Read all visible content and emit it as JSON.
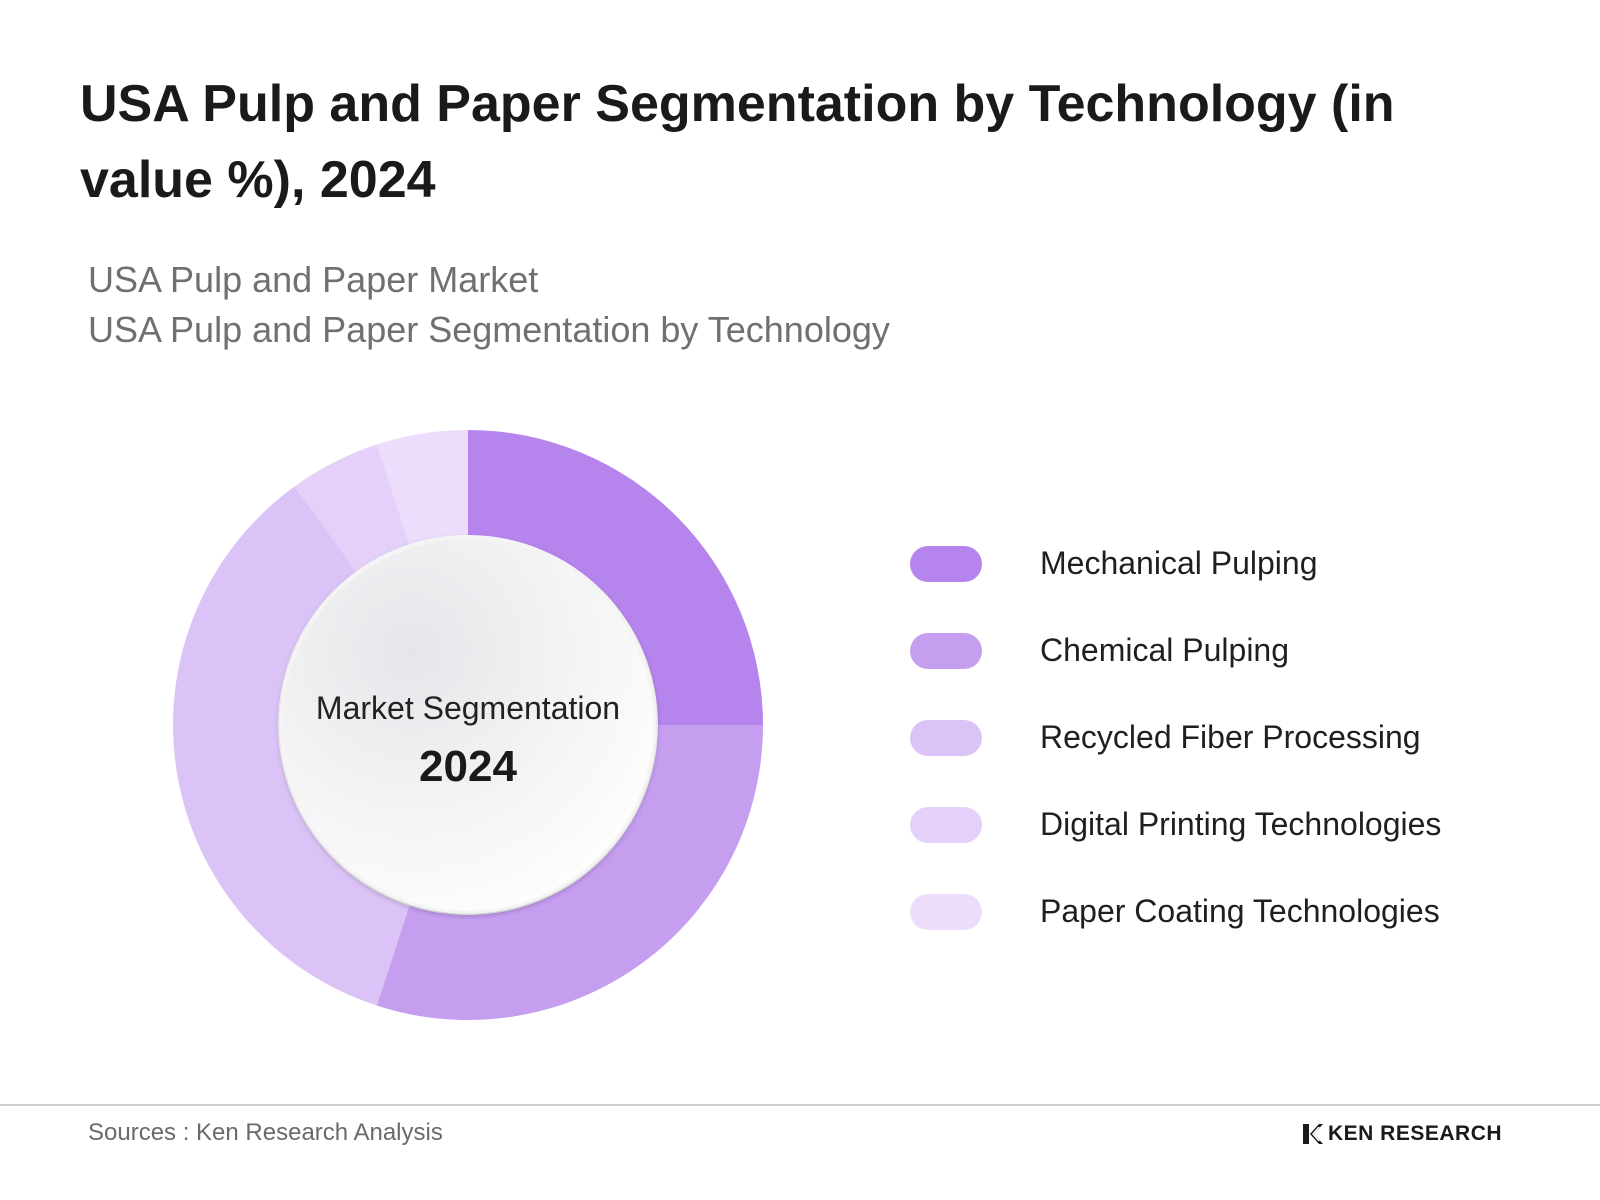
{
  "title": "USA Pulp and Paper Segmentation by Technology (in value %), 2024",
  "subtitle_lines": [
    "USA Pulp and Paper Market",
    "USA Pulp and Paper Segmentation by Technology"
  ],
  "center": {
    "label": "Market Segmentation",
    "year": "2024"
  },
  "chart_data": {
    "type": "pie",
    "style": "donut",
    "categories": [
      "Mechanical Pulping",
      "Chemical Pulping",
      "Recycled Fiber Processing",
      "Digital Printing Technologies",
      "Paper Coating Technologies"
    ],
    "values": [
      25,
      30,
      35,
      5,
      5
    ],
    "colors": [
      "#b584ec",
      "#c59ef0",
      "#dcc3f7",
      "#e4d0f8",
      "#ebddfb"
    ],
    "legend_position": "right"
  },
  "footer": {
    "source": "Sources : Ken Research Analysis",
    "brand": "KEN RESEARCH",
    "brand_icon": "ken-research-k-logo-icon"
  }
}
